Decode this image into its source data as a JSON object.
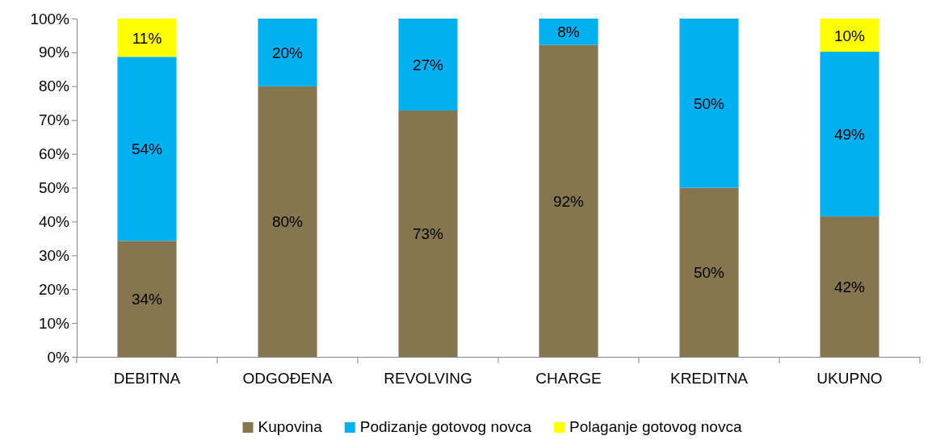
{
  "chart_data": {
    "type": "bar",
    "stacked": true,
    "categories": [
      "DEBITNA",
      "ODGOĐENA",
      "REVOLVING",
      "CHARGE",
      "KREDITNA",
      "UKUPNO"
    ],
    "series": [
      {
        "name": "Kupovina",
        "color": "#857650",
        "values": [
          34.3,
          80,
          72.8,
          92.2,
          50,
          41.5
        ],
        "value_labels": [
          "34%",
          "80%",
          "73%",
          "92%",
          "50%",
          "42%"
        ]
      },
      {
        "name": "Podizanje gotovog novca",
        "color": "#00b0f0",
        "values": [
          54.4,
          20,
          27.2,
          7.8,
          50,
          48.7
        ],
        "value_labels": [
          "54%",
          "20%",
          "27%",
          "8%",
          "50%",
          "49%"
        ]
      },
      {
        "name": "Polaganje gotovog novca",
        "color": "#ffff00",
        "values": [
          11.3,
          null,
          null,
          null,
          null,
          9.8
        ],
        "value_labels": [
          "11%",
          null,
          null,
          null,
          null,
          "10%"
        ]
      }
    ],
    "ylim": [
      0,
      100
    ],
    "yticks": [
      {
        "value": 0,
        "label": "0%"
      },
      {
        "value": 10,
        "label": "10%"
      },
      {
        "value": 20,
        "label": "20%"
      },
      {
        "value": 30,
        "label": "30%"
      },
      {
        "value": 40,
        "label": "40%"
      },
      {
        "value": 50,
        "label": "50%"
      },
      {
        "value": 60,
        "label": "60%"
      },
      {
        "value": 70,
        "label": "70%"
      },
      {
        "value": 80,
        "label": "80%"
      },
      {
        "value": 90,
        "label": "90%"
      },
      {
        "value": 100,
        "label": "100%"
      }
    ],
    "legend": "bottom"
  }
}
